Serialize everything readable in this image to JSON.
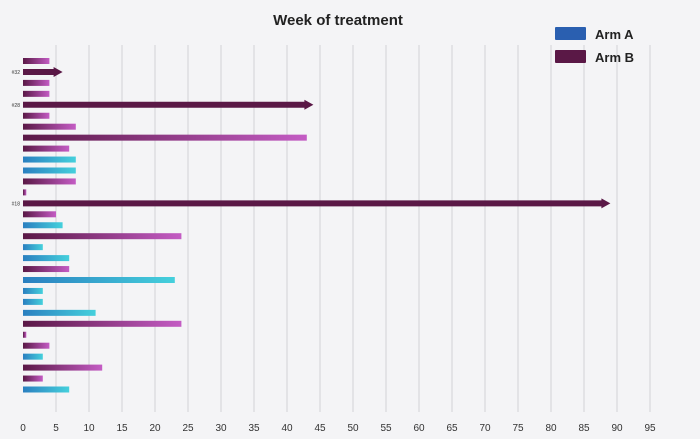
{
  "chart_data": {
    "type": "bar",
    "orientation": "horizontal",
    "title": "Week of treatment",
    "xlabel": "",
    "ylabel": "",
    "xlim": [
      0,
      95
    ],
    "x_ticks": [
      0,
      5,
      10,
      15,
      20,
      25,
      30,
      35,
      40,
      45,
      50,
      55,
      60,
      65,
      70,
      75,
      80,
      85,
      90,
      95
    ],
    "grid": "vertical",
    "legend_position": "top-right",
    "series": [
      {
        "name": "Arm A",
        "color": "#2a7fc0",
        "color_end": "#45d0dc"
      },
      {
        "name": "Arm B",
        "color": "#5a1846",
        "color_end": "#c45cc4"
      }
    ],
    "bars": [
      {
        "label": "",
        "arm": "Arm B",
        "value": 4,
        "arrow": false
      },
      {
        "label": "#32",
        "arm": "Arm B",
        "value": 6,
        "arrow": true
      },
      {
        "label": "",
        "arm": "Arm B",
        "value": 4,
        "arrow": false
      },
      {
        "label": "",
        "arm": "Arm B",
        "value": 4,
        "arrow": false
      },
      {
        "label": "#28",
        "arm": "Arm B",
        "value": 44,
        "arrow": true
      },
      {
        "label": "",
        "arm": "Arm B",
        "value": 4,
        "arrow": false
      },
      {
        "label": "",
        "arm": "Arm B",
        "value": 8,
        "arrow": false
      },
      {
        "label": "",
        "arm": "Arm B",
        "value": 43,
        "arrow": false
      },
      {
        "label": "",
        "arm": "Arm B",
        "value": 7,
        "arrow": false
      },
      {
        "label": "",
        "arm": "Arm A",
        "value": 8,
        "arrow": false
      },
      {
        "label": "",
        "arm": "Arm A",
        "value": 8,
        "arrow": false
      },
      {
        "label": "",
        "arm": "Arm B",
        "value": 8,
        "arrow": false
      },
      {
        "label": "",
        "arm": "Arm B",
        "value": 0.5,
        "arrow": false
      },
      {
        "label": "#18",
        "arm": "Arm B",
        "value": 89,
        "arrow": true
      },
      {
        "label": "",
        "arm": "Arm B",
        "value": 5,
        "arrow": false
      },
      {
        "label": "",
        "arm": "Arm A",
        "value": 6,
        "arrow": false
      },
      {
        "label": "",
        "arm": "Arm B",
        "value": 24,
        "arrow": false
      },
      {
        "label": "",
        "arm": "Arm A",
        "value": 3,
        "arrow": false
      },
      {
        "label": "",
        "arm": "Arm A",
        "value": 7,
        "arrow": false
      },
      {
        "label": "",
        "arm": "Arm B",
        "value": 7,
        "arrow": false
      },
      {
        "label": "",
        "arm": "Arm A",
        "value": 23,
        "arrow": false
      },
      {
        "label": "",
        "arm": "Arm A",
        "value": 3,
        "arrow": false
      },
      {
        "label": "",
        "arm": "Arm A",
        "value": 3,
        "arrow": false
      },
      {
        "label": "",
        "arm": "Arm A",
        "value": 11,
        "arrow": false
      },
      {
        "label": "",
        "arm": "Arm B",
        "value": 24,
        "arrow": false
      },
      {
        "label": "",
        "arm": "Arm B",
        "value": 0.5,
        "arrow": false
      },
      {
        "label": "",
        "arm": "Arm B",
        "value": 4,
        "arrow": false
      },
      {
        "label": "",
        "arm": "Arm A",
        "value": 3,
        "arrow": false
      },
      {
        "label": "",
        "arm": "Arm B",
        "value": 12,
        "arrow": false
      },
      {
        "label": "",
        "arm": "Arm B",
        "value": 3,
        "arrow": false
      },
      {
        "label": "",
        "arm": "Arm A",
        "value": 7,
        "arrow": false
      }
    ]
  }
}
